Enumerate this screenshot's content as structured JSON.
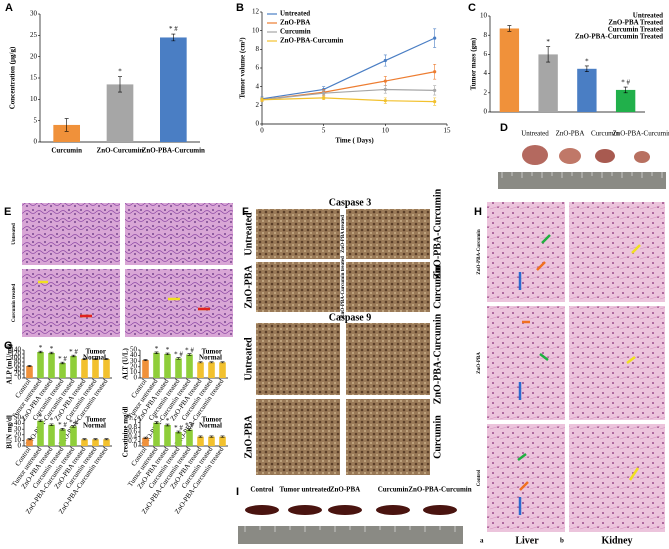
{
  "chart_data": [
    {
      "type": "bar",
      "ylabel": "Concentration (µg/g)",
      "categories": [
        "Curcumin",
        "ZnO-Curcumin",
        "ZnO-PBA-Curcumin"
      ],
      "values": [
        4,
        13.5,
        24.5
      ],
      "errors": [
        1.5,
        1.8,
        0.8
      ],
      "colors": [
        "#f0913a",
        "#a6a6a6",
        "#4a7ec4"
      ],
      "markers": [
        null,
        "*",
        "* #"
      ],
      "ylim": [
        0,
        30
      ],
      "yticks": [
        0,
        5,
        10,
        15,
        20,
        25,
        30
      ]
    },
    {
      "type": "line",
      "ylabel": "Tumor volume (cm³)",
      "xlabel": "Time ( Days)",
      "x": [
        0,
        5,
        10,
        14
      ],
      "xlim": [
        0,
        15
      ],
      "xticks": [
        0,
        5,
        10,
        15
      ],
      "ylim": [
        0,
        12
      ],
      "yticks": [
        0,
        2,
        4,
        6,
        8,
        10,
        12
      ],
      "legend": "upper left",
      "series": [
        {
          "name": "Untreated",
          "color": "#4a7ec4",
          "values": [
            2.7,
            3.7,
            6.8,
            9.2
          ],
          "errors": [
            0.2,
            0.3,
            0.6,
            1.0
          ]
        },
        {
          "name": "ZnO-PBA",
          "color": "#ed7d31",
          "values": [
            2.6,
            3.4,
            4.6,
            5.6
          ],
          "errors": [
            0.2,
            0.3,
            0.5,
            0.8
          ]
        },
        {
          "name": "Curcumin",
          "color": "#a6a6a6",
          "values": [
            2.6,
            3.3,
            3.7,
            3.6
          ],
          "errors": [
            0.2,
            0.3,
            0.4,
            0.5
          ]
        },
        {
          "name": "ZnO-PBA-Curcumin",
          "color": "#f2c12e",
          "values": [
            2.6,
            2.8,
            2.5,
            2.4
          ],
          "errors": [
            0.2,
            0.2,
            0.3,
            0.4
          ]
        }
      ]
    },
    {
      "type": "bar",
      "ylabel": "Tumor mass (gm)",
      "categories": [
        "Untreated",
        "ZnO-PBA Treated",
        "Curcumin Treated",
        "ZnO-PBA-Curcumin Treated"
      ],
      "values": [
        8.7,
        6.0,
        4.5,
        2.3
      ],
      "errors": [
        0.3,
        0.8,
        0.3,
        0.3
      ],
      "colors": [
        "#f0913a",
        "#a6a6a6",
        "#4a7ec4",
        "#21b04b"
      ],
      "markers": [
        null,
        "*",
        "*",
        "* #"
      ],
      "legend": "upper right",
      "ylim": [
        0,
        10
      ],
      "yticks": [
        0,
        2,
        4,
        6,
        8,
        10
      ]
    },
    {
      "type": "bar",
      "ylabel": "ALP (mU/ml)",
      "categories": [
        "Control",
        "Tumor untreated",
        "ZnO-PBA treated",
        "Curcumin treated",
        "ZnO-PBA-Curcumin treated",
        "ZnO-PBA treated",
        "Curcumin treated",
        "ZnO-PBA-Curcumin treated"
      ],
      "values": [
        60,
        130,
        125,
        75,
        110,
        95,
        95,
        95
      ],
      "errors": [
        3,
        4,
        4,
        4,
        4,
        3,
        3,
        3
      ],
      "colors": [
        "#f0913a",
        "#8fce3a",
        "#8fce3a",
        "#8fce3a",
        "#8fce3a",
        "#f2c12e",
        "#f2c12e",
        "#f2c12e"
      ],
      "markers": [
        null,
        "*",
        "*",
        "* #",
        "* #",
        null,
        null,
        null
      ],
      "groups": [
        {
          "name": "Tumor",
          "color": "#8fce3a"
        },
        {
          "name": "Normal",
          "color": "#f2c12e"
        }
      ],
      "ylim": [
        0,
        140
      ],
      "yticks": [
        0,
        20,
        40,
        60,
        80,
        100,
        120,
        140
      ]
    },
    {
      "type": "bar",
      "ylabel": "ALT (U/L)",
      "categories": [
        "Control",
        "Tumor untreated",
        "ZnO-PBA treated",
        "Curcumin treated",
        "ZnO-PBA-Curcumin treated",
        "ZnO-PBA treated",
        "Curcumin treated",
        "ZnO-PBA-Curcumin treated"
      ],
      "values": [
        32,
        45,
        43,
        35,
        42,
        28,
        28,
        28
      ],
      "errors": [
        1,
        1.5,
        1.5,
        1.5,
        1.5,
        1,
        1,
        1
      ],
      "colors": [
        "#f0913a",
        "#8fce3a",
        "#8fce3a",
        "#8fce3a",
        "#8fce3a",
        "#f2c12e",
        "#f2c12e",
        "#f2c12e"
      ],
      "markers": [
        null,
        "*",
        "*",
        "* #",
        "* #",
        null,
        null,
        null
      ],
      "groups": [
        {
          "name": "Tumor",
          "color": "#8fce3a"
        },
        {
          "name": "Normal",
          "color": "#f2c12e"
        }
      ],
      "ylim": [
        0,
        50
      ],
      "yticks": [
        0,
        10,
        20,
        30,
        40,
        50
      ]
    },
    {
      "type": "bar",
      "ylabel": "BUN mg/dl",
      "categories": [
        "Control",
        "Tumor untreated",
        "ZnO-PBA treated",
        "Curcumin treated",
        "ZnO-PBA-Curcumin treated",
        "ZnO-PBA treated",
        "Curcumin treated",
        "ZnO-PBA-Curcumin treated"
      ],
      "values": [
        12,
        45,
        38,
        30,
        35,
        12,
        12,
        12
      ],
      "errors": [
        1,
        1.5,
        1.5,
        1.5,
        1.5,
        1,
        1,
        1
      ],
      "colors": [
        "#f0913a",
        "#8fce3a",
        "#8fce3a",
        "#8fce3a",
        "#8fce3a",
        "#f2c12e",
        "#f2c12e",
        "#f2c12e"
      ],
      "markers": [
        null,
        "*",
        "*",
        "* #",
        "* #",
        null,
        null,
        null
      ],
      "groups": [
        {
          "name": "Tumor",
          "color": "#8fce3a"
        },
        {
          "name": "Normal",
          "color": "#f2c12e"
        }
      ],
      "ylim": [
        0,
        50
      ],
      "yticks": [
        0,
        10,
        20,
        30,
        40,
        50
      ]
    },
    {
      "type": "bar",
      "ylabel": "Creatinine mg/dl",
      "categories": [
        "Control",
        "Tumor untreated",
        "ZnO-PBA treated",
        "Curcumin treated",
        "ZnO-PBA-Curcumin treated",
        "ZnO-PBA treated",
        "Curcumin treated",
        "ZnO-PBA-Curcumin treated"
      ],
      "values": [
        0.35,
        1.0,
        0.9,
        0.6,
        0.7,
        0.4,
        0.4,
        0.4
      ],
      "errors": [
        0.03,
        0.04,
        0.04,
        0.04,
        0.04,
        0.03,
        0.03,
        0.03
      ],
      "colors": [
        "#f0913a",
        "#8fce3a",
        "#8fce3a",
        "#8fce3a",
        "#8fce3a",
        "#f2c12e",
        "#f2c12e",
        "#f2c12e"
      ],
      "markers": [
        null,
        "*",
        "*",
        "* #",
        "* #",
        null,
        null,
        null
      ],
      "groups": [
        {
          "name": "Tumor",
          "color": "#8fce3a"
        },
        {
          "name": "Normal",
          "color": "#f2c12e"
        }
      ],
      "ylim": [
        0,
        1.2
      ],
      "yticks": [
        0,
        0.2,
        0.4,
        0.6,
        0.8,
        1,
        1.2
      ]
    }
  ],
  "panels": {
    "letters": [
      "A",
      "B",
      "C",
      "D",
      "E",
      "F",
      "G",
      "H",
      "I"
    ],
    "D": {
      "labels": [
        "Untreated",
        "ZnO-PBA",
        "Curcumin",
        "ZnO-PBA-Curcumin"
      ]
    },
    "E": {
      "rows": [
        "Untreated",
        "Curcumin treated"
      ]
    },
    "F": {
      "caspase3": "Caspase 3",
      "caspase9": "Caspase 9",
      "left": [
        "Untreated",
        "ZnO-PBA",
        "Untreated",
        "ZnO-PBA"
      ],
      "inner": [
        "ZnO-PBA treated",
        "ZnO-PBA-Curcumin treated"
      ],
      "right": [
        "ZnO-PBA-Curcumin",
        "Curcumin",
        "ZnO-PBA-Curcumin",
        "Curcumin"
      ]
    },
    "H": {
      "rows": [
        "ZnO-PBA-Curcumin",
        "ZnO-PBA",
        "Control"
      ],
      "columns": [
        "Liver",
        "Kidney"
      ],
      "sub": [
        "a",
        "b"
      ]
    },
    "I": {
      "labels": [
        "Control",
        "Tumor untreated",
        "ZnO-PBA",
        "Curcumin",
        "ZnO-PBA-Curcumin"
      ]
    }
  }
}
